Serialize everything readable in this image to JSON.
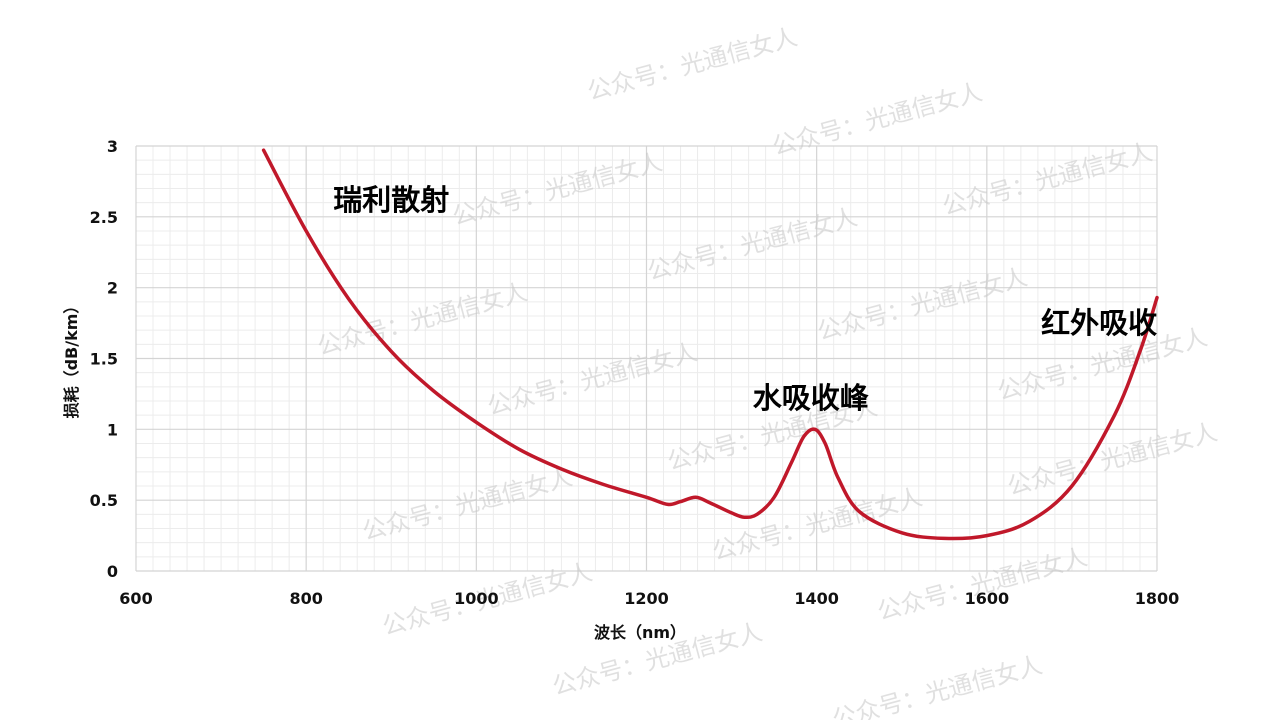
{
  "chart_data": {
    "type": "line",
    "xlabel": "波长（nm）",
    "ylabel": "损耗（dB/km）",
    "xlim": [
      600,
      1800
    ],
    "ylim": [
      0,
      3
    ],
    "xticks": [
      "600",
      "800",
      "1000",
      "1200",
      "1400",
      "1600",
      "1800"
    ],
    "yticks": [
      "0",
      "0.5",
      "1",
      "1.5",
      "2",
      "2.5",
      "3"
    ],
    "grid": true,
    "legend": "none",
    "series": [
      {
        "color": "#c0182a",
        "x": [
          750,
          800,
          850,
          900,
          950,
          1000,
          1050,
          1100,
          1150,
          1200,
          1225,
          1240,
          1258,
          1275,
          1300,
          1315,
          1330,
          1350,
          1370,
          1385,
          1398,
          1410,
          1425,
          1450,
          1500,
          1550,
          1600,
          1650,
          1700,
          1750,
          1780,
          1800
        ],
        "y": [
          2.97,
          2.4,
          1.92,
          1.55,
          1.27,
          1.05,
          0.86,
          0.72,
          0.61,
          0.52,
          0.47,
          0.49,
          0.52,
          0.48,
          0.41,
          0.38,
          0.4,
          0.52,
          0.76,
          0.95,
          1.0,
          0.9,
          0.66,
          0.42,
          0.27,
          0.23,
          0.25,
          0.35,
          0.6,
          1.1,
          1.55,
          1.93
        ]
      }
    ],
    "annotations": [
      {
        "text": "瑞利散射",
        "x": 900,
        "y": 2.55
      },
      {
        "text": "水吸收峰",
        "x": 1393,
        "y": 1.15
      },
      {
        "text": "红外吸收",
        "x": 1732,
        "y": 1.68
      }
    ]
  },
  "watermark": "公众号：光通信女人"
}
